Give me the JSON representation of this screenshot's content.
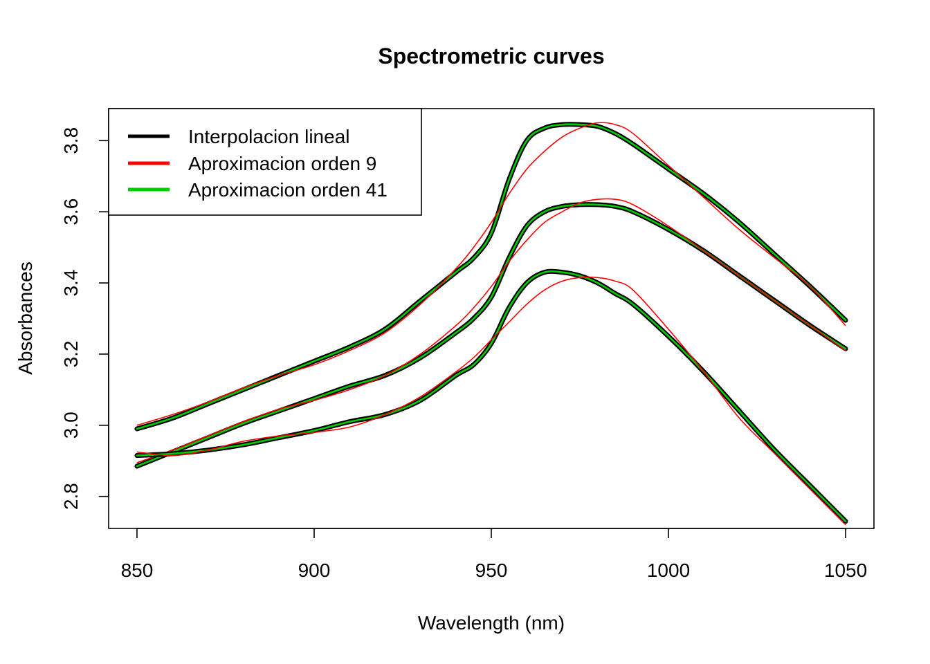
{
  "chart_data": {
    "type": "line",
    "title": "Spectrometric curves",
    "xlabel": "Wavelength (nm)",
    "ylabel": "Absorbances",
    "xlim": [
      842,
      1058
    ],
    "ylim": [
      2.71,
      3.89
    ],
    "x_ticks": [
      850,
      900,
      950,
      1000,
      1050
    ],
    "x_tick_labels": [
      "850",
      "900",
      "950",
      "1000",
      "1050"
    ],
    "y_ticks": [
      2.8,
      3.0,
      3.2,
      3.4,
      3.6,
      3.8
    ],
    "y_tick_labels": [
      "2.8",
      "3.0",
      "3.2",
      "3.4",
      "3.6",
      "3.8"
    ],
    "grid": false,
    "legend_position": "top-left",
    "legend": [
      {
        "label": "Interpolacion lineal",
        "color": "#000000"
      },
      {
        "label": "Aproximacion orden 9",
        "color": "#ff0000"
      },
      {
        "label": "Aproximacion orden 41",
        "color": "#00cd00"
      }
    ],
    "x": [
      850,
      860,
      870,
      880,
      890,
      900,
      910,
      920,
      930,
      940,
      945,
      950,
      955,
      960,
      965,
      970,
      975,
      980,
      985,
      990,
      1000,
      1010,
      1020,
      1030,
      1040,
      1050
    ],
    "samples": [
      {
        "interpolacion_lineal": [
          2.99,
          3.02,
          3.06,
          3.1,
          3.14,
          3.18,
          3.22,
          3.27,
          3.35,
          3.43,
          3.47,
          3.54,
          3.69,
          3.8,
          3.835,
          3.845,
          3.845,
          3.84,
          3.82,
          3.79,
          3.72,
          3.65,
          3.57,
          3.48,
          3.39,
          3.295
        ],
        "aproximacion_orden_9": [
          3.0,
          3.03,
          3.065,
          3.105,
          3.14,
          3.17,
          3.21,
          3.26,
          3.34,
          3.44,
          3.5,
          3.57,
          3.65,
          3.72,
          3.77,
          3.81,
          3.835,
          3.85,
          3.845,
          3.82,
          3.73,
          3.64,
          3.55,
          3.47,
          3.39,
          3.28
        ]
      },
      {
        "interpolacion_lineal": [
          2.885,
          2.925,
          2.965,
          3.005,
          3.04,
          3.075,
          3.11,
          3.14,
          3.19,
          3.26,
          3.3,
          3.36,
          3.47,
          3.56,
          3.6,
          3.615,
          3.62,
          3.62,
          3.615,
          3.6,
          3.55,
          3.49,
          3.42,
          3.35,
          3.28,
          3.215
        ],
        "aproximacion_orden_9": [
          2.895,
          2.93,
          2.97,
          3.01,
          3.045,
          3.07,
          3.1,
          3.14,
          3.2,
          3.28,
          3.33,
          3.39,
          3.46,
          3.52,
          3.57,
          3.6,
          3.625,
          3.635,
          3.635,
          3.62,
          3.56,
          3.49,
          3.42,
          3.35,
          3.28,
          3.21
        ]
      },
      {
        "interpolacion_lineal": [
          2.915,
          2.92,
          2.93,
          2.945,
          2.965,
          2.985,
          3.01,
          3.03,
          3.07,
          3.14,
          3.17,
          3.23,
          3.33,
          3.4,
          3.43,
          3.43,
          3.42,
          3.4,
          3.37,
          3.34,
          3.25,
          3.15,
          3.04,
          2.93,
          2.83,
          2.73
        ],
        "aproximacion_orden_9": [
          2.925,
          2.915,
          2.93,
          2.955,
          2.97,
          2.98,
          2.995,
          3.03,
          3.08,
          3.15,
          3.19,
          3.24,
          3.29,
          3.34,
          3.38,
          3.405,
          3.415,
          3.415,
          3.405,
          3.38,
          3.27,
          3.15,
          3.02,
          2.92,
          2.82,
          2.72
        ]
      }
    ]
  }
}
